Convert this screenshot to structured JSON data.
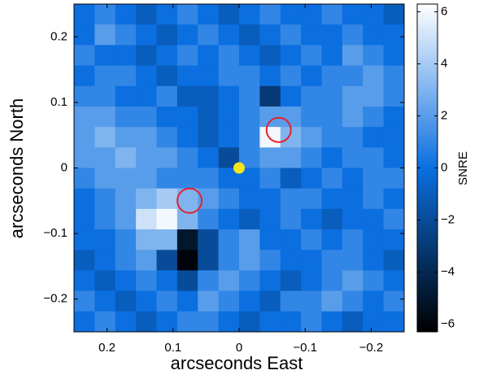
{
  "chart_data": {
    "type": "heatmap",
    "xlabel": "arcseconds East",
    "ylabel": "arcseconds North",
    "colorbar_label": "SNRE",
    "xlim": [
      0.25,
      -0.25
    ],
    "ylim": [
      -0.25,
      0.25
    ],
    "xticks": [
      {
        "value": 0.2,
        "label": "0.2"
      },
      {
        "value": 0.1,
        "label": "0.1"
      },
      0,
      {
        "value": -0.1,
        "label": "−0.1"
      },
      {
        "value": -0.2,
        "label": "−0.2"
      }
    ],
    "yticks": [
      {
        "value": -0.2,
        "label": "−0.2"
      },
      {
        "value": -0.1,
        "label": "−0.1"
      },
      0,
      {
        "value": 0.1,
        "label": "0.1"
      },
      {
        "value": 0.2,
        "label": "0.2"
      }
    ],
    "clim": [
      -6.3,
      6.3
    ],
    "cticks": [
      {
        "value": -6,
        "label": "−6"
      },
      {
        "value": -4,
        "label": "−4"
      },
      {
        "value": -2,
        "label": "−2"
      },
      0,
      2,
      4,
      6
    ],
    "colormap": [
      "#000000",
      "#0b6fe0",
      "#ffffff"
    ],
    "z": [
      [
        0,
        1,
        0,
        -1,
        0,
        1,
        0,
        -1,
        0,
        1,
        0,
        0,
        1,
        0,
        0,
        -1
      ],
      [
        0,
        2,
        1,
        0,
        -1,
        0,
        1,
        0,
        -1,
        0,
        1,
        0,
        0,
        1,
        0,
        0
      ],
      [
        1,
        0,
        0,
        -1,
        0,
        1,
        0,
        1,
        0,
        -1,
        0,
        1,
        0,
        2,
        1,
        0
      ],
      [
        0,
        1,
        1,
        0,
        -1,
        0,
        0,
        1,
        1,
        0,
        1,
        0,
        1,
        1,
        2,
        1
      ],
      [
        1,
        1,
        0,
        0,
        1,
        -1,
        -1,
        0,
        1,
        -3,
        0,
        1,
        1,
        2,
        2,
        1
      ],
      [
        2,
        2,
        1,
        1,
        0,
        0,
        -1,
        0,
        1,
        2,
        2,
        1,
        1,
        2,
        1,
        0
      ],
      [
        2,
        3,
        2,
        2,
        1,
        0,
        -1,
        0,
        1,
        6,
        3,
        2,
        1,
        1,
        0,
        0
      ],
      [
        2,
        2,
        3,
        2,
        2,
        1,
        0,
        -2,
        1,
        2,
        2,
        1,
        0,
        1,
        1,
        0
      ],
      [
        1,
        2,
        2,
        2,
        1,
        1,
        1,
        0,
        0,
        1,
        -1,
        0,
        1,
        0,
        1,
        1
      ],
      [
        0,
        1,
        2,
        3,
        4,
        3,
        2,
        1,
        0,
        0,
        1,
        1,
        0,
        0,
        1,
        0
      ],
      [
        0,
        1,
        2,
        5,
        6,
        3,
        1,
        0,
        -1,
        0,
        1,
        0,
        -1,
        0,
        0,
        1
      ],
      [
        0,
        0,
        1,
        3,
        3,
        -5,
        -2,
        1,
        2,
        0,
        0,
        1,
        0,
        1,
        0,
        0
      ],
      [
        -1,
        0,
        1,
        2,
        -2,
        -6,
        -2,
        1,
        2,
        1,
        0,
        0,
        1,
        1,
        0,
        -1
      ],
      [
        0,
        -1,
        0,
        1,
        0,
        -2,
        1,
        2,
        1,
        0,
        -1,
        0,
        1,
        2,
        1,
        0
      ],
      [
        1,
        0,
        -1,
        0,
        1,
        0,
        2,
        1,
        0,
        -1,
        1,
        1,
        2,
        1,
        0,
        1
      ],
      [
        0,
        1,
        0,
        -1,
        0,
        1,
        1,
        0,
        -1,
        0,
        0,
        1,
        0,
        -1,
        0,
        0
      ]
    ],
    "markers": [
      {
        "x": 0,
        "y": 0,
        "shape": "dot",
        "color": "#f5e51b"
      },
      {
        "x": -0.06,
        "y": 0.058,
        "shape": "circle",
        "color": "#e8202a"
      },
      {
        "x": 0.075,
        "y": -0.05,
        "shape": "circle",
        "color": "#e8202a"
      }
    ]
  }
}
